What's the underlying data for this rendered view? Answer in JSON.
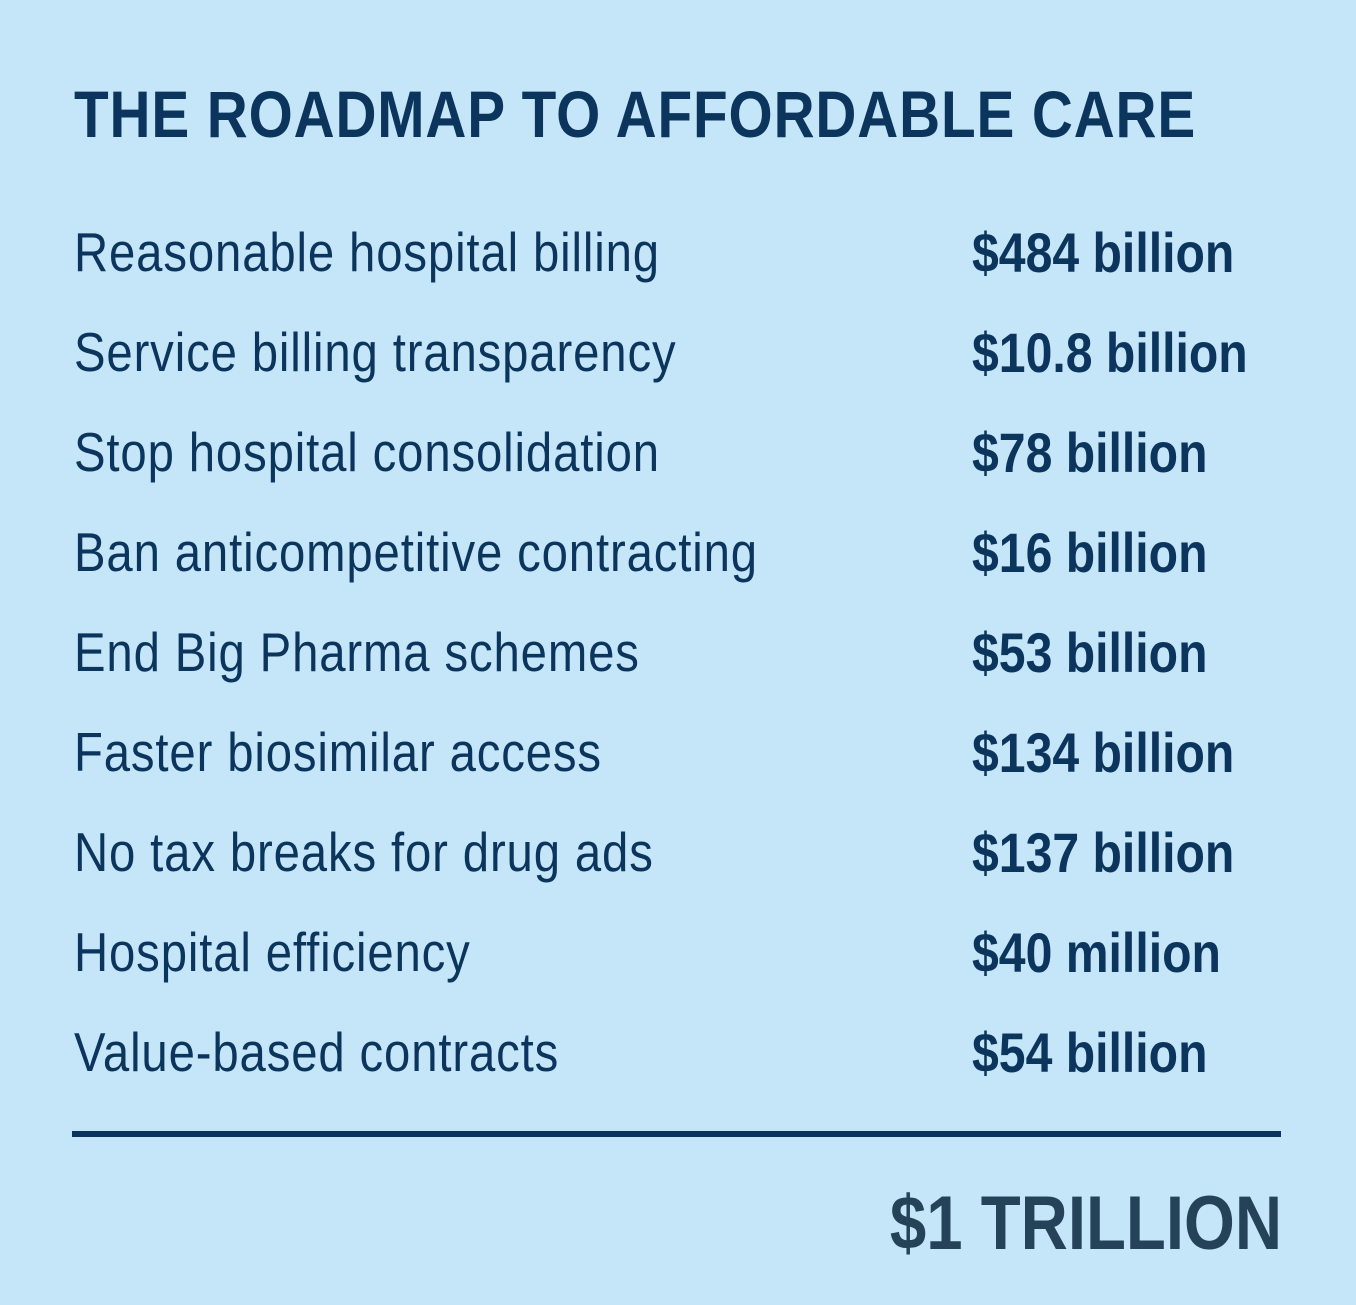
{
  "title": "THE ROADMAP TO AFFORDABLE CARE",
  "rows": [
    {
      "label": "Reasonable hospital billing",
      "value": "$484 billion"
    },
    {
      "label": "Service billing transparency",
      "value": "$10.8 billion"
    },
    {
      "label": "Stop hospital consolidation",
      "value": "$78 billion"
    },
    {
      "label": "Ban anticompetitive contracting",
      "value": "$16 billion"
    },
    {
      "label": "End Big Pharma schemes",
      "value": "$53 billion"
    },
    {
      "label": "Faster biosimilar access",
      "value": "$134 billion"
    },
    {
      "label": "No tax breaks for drug ads",
      "value": "$137 billion"
    },
    {
      "label": "Hospital efficiency",
      "value": "$40 million"
    },
    {
      "label": "Value-based contracts",
      "value": "$54 billion"
    }
  ],
  "total": "$1 TRILLION",
  "colors": {
    "background": "#c5e6f8",
    "text": "#0b355c",
    "total": "#244359"
  }
}
